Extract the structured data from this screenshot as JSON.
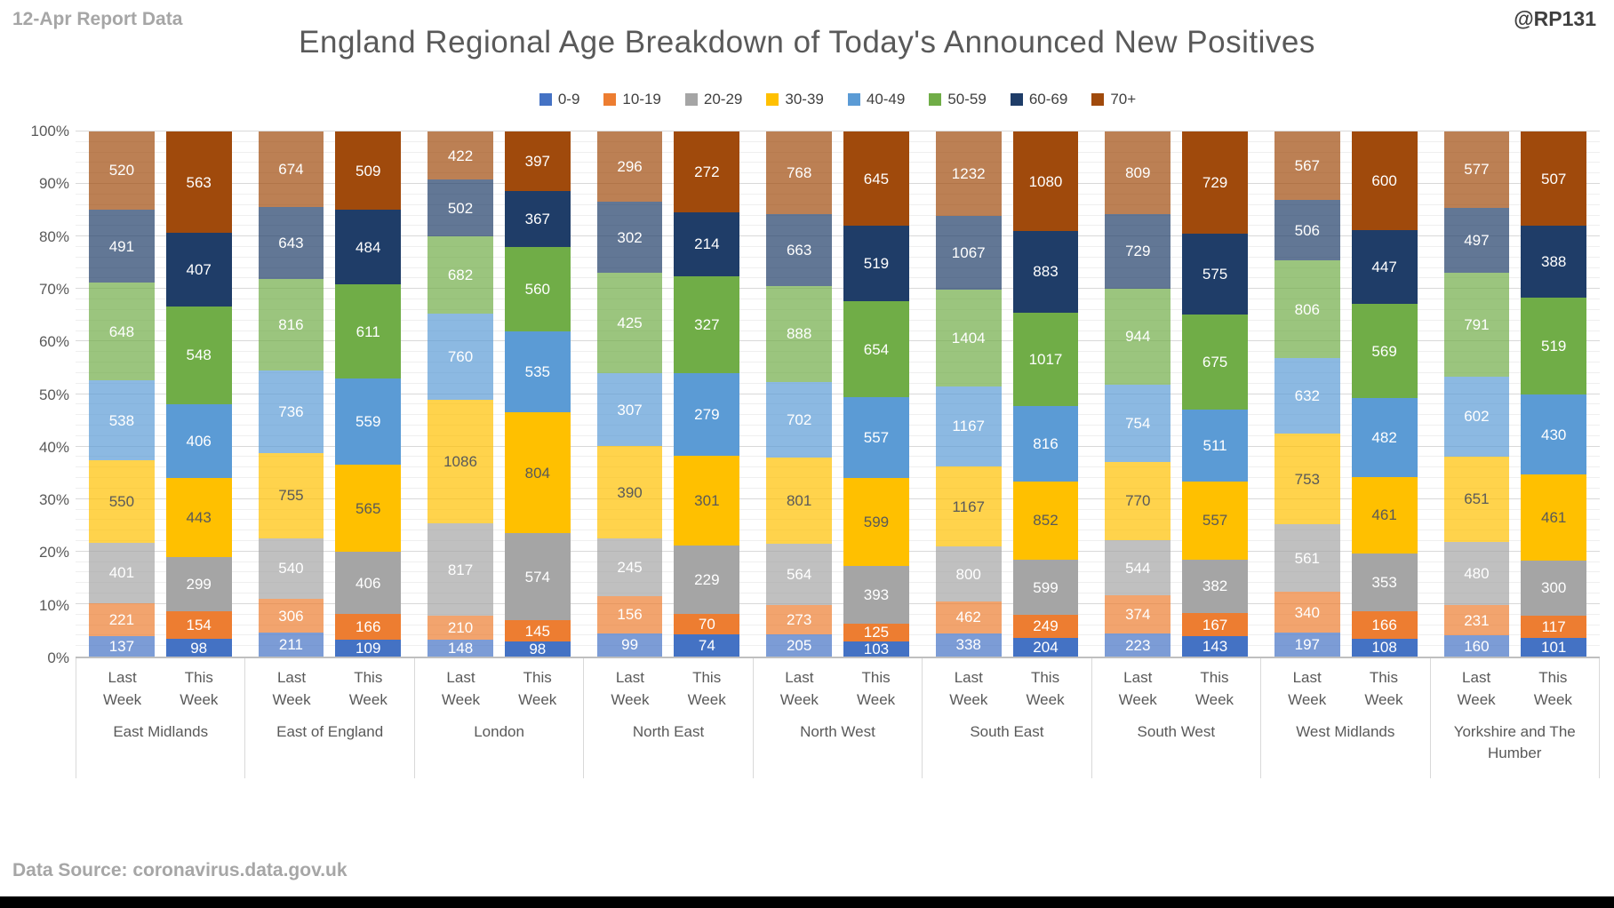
{
  "header": {
    "report_label": "12-Apr Report Data",
    "watermark": "@RP131",
    "title": "England Regional Age Breakdown of Today's Announced New Positives",
    "data_source": "Data Source: coronavirus.data.gov.uk"
  },
  "chart_data": {
    "type": "bar",
    "stacked": true,
    "percent_stacked": true,
    "title": "England Regional Age Breakdown of Today's Announced New Positives",
    "legend_position": "top",
    "ylabel": "",
    "xlabel": "",
    "ylim_percent": [
      0,
      100
    ],
    "y_ticks": [
      "0%",
      "10%",
      "20%",
      "30%",
      "40%",
      "50%",
      "60%",
      "70%",
      "80%",
      "90%",
      "100%"
    ],
    "bar_labels": [
      "Last Week",
      "This Week"
    ],
    "age_groups": [
      {
        "label": "0-9",
        "color": "#4472C4",
        "label_color": "#FFFFFF"
      },
      {
        "label": "10-19",
        "color": "#ED7D31",
        "label_color": "#FFFFFF"
      },
      {
        "label": "20-29",
        "color": "#A5A5A5",
        "label_color": "#FFFFFF"
      },
      {
        "label": "30-39",
        "color": "#FFC000",
        "label_color": "#595959"
      },
      {
        "label": "40-49",
        "color": "#5B9BD5",
        "label_color": "#FFFFFF"
      },
      {
        "label": "50-59",
        "color": "#70AD47",
        "label_color": "#FFFFFF"
      },
      {
        "label": "60-69",
        "color": "#1F3D68",
        "label_color": "#FFFFFF"
      },
      {
        "label": "70+",
        "color": "#A04A0C",
        "label_color": "#FFFFFF"
      }
    ],
    "last_week_fade_alpha": 0.7,
    "regions": [
      {
        "name": "East Midlands",
        "last_week": [
          137,
          221,
          401,
          550,
          538,
          648,
          491,
          520
        ],
        "this_week": [
          98,
          154,
          299,
          443,
          406,
          548,
          407,
          563
        ]
      },
      {
        "name": "East of England",
        "last_week": [
          211,
          306,
          540,
          755,
          736,
          816,
          643,
          674
        ],
        "this_week": [
          109,
          166,
          406,
          565,
          559,
          611,
          484,
          509
        ]
      },
      {
        "name": "London",
        "last_week": [
          148,
          210,
          817,
          1086,
          760,
          682,
          502,
          422
        ],
        "this_week": [
          98,
          145,
          574,
          804,
          535,
          560,
          367,
          397
        ]
      },
      {
        "name": "North East",
        "last_week": [
          99,
          156,
          245,
          390,
          307,
          425,
          302,
          296
        ],
        "this_week": [
          74,
          70,
          229,
          301,
          279,
          327,
          214,
          272
        ]
      },
      {
        "name": "North West",
        "last_week": [
          205,
          273,
          564,
          801,
          702,
          888,
          663,
          768
        ],
        "this_week": [
          103,
          125,
          393,
          599,
          557,
          654,
          519,
          645
        ]
      },
      {
        "name": "South East",
        "last_week": [
          338,
          462,
          800,
          1167,
          1167,
          1404,
          1067,
          1232
        ],
        "this_week": [
          204,
          249,
          599,
          852,
          816,
          1017,
          883,
          1080
        ]
      },
      {
        "name": "South West",
        "last_week": [
          223,
          374,
          544,
          770,
          754,
          944,
          729,
          809
        ],
        "this_week": [
          143,
          167,
          382,
          557,
          511,
          675,
          575,
          729
        ]
      },
      {
        "name": "West Midlands",
        "last_week": [
          197,
          340,
          561,
          753,
          632,
          806,
          506,
          567
        ],
        "this_week": [
          108,
          166,
          353,
          461,
          482,
          569,
          447,
          600
        ]
      },
      {
        "name": "Yorkshire and The Humber",
        "last_week": [
          160,
          231,
          480,
          651,
          602,
          791,
          497,
          577
        ],
        "this_week": [
          101,
          117,
          300,
          461,
          430,
          519,
          388,
          507
        ]
      }
    ]
  }
}
